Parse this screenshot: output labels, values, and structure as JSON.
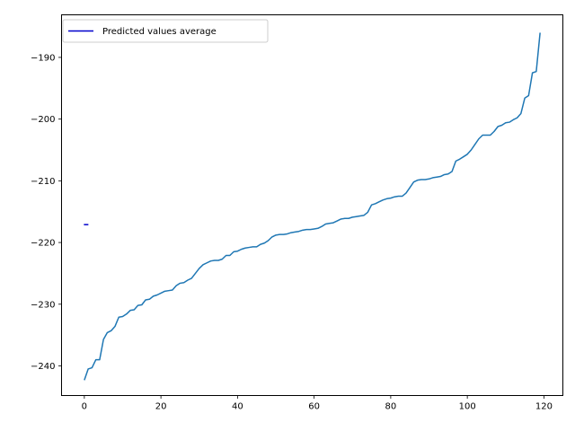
{
  "chart_data": {
    "type": "line",
    "title": "",
    "xlabel": "",
    "ylabel": "",
    "xlim": [
      -5.95,
      124.95
    ],
    "ylim": [
      -244.8,
      -183.1
    ],
    "xticks": [
      0,
      20,
      40,
      60,
      80,
      100,
      120
    ],
    "xtick_labels": [
      "0",
      "20",
      "40",
      "60",
      "80",
      "100",
      "120"
    ],
    "yticks": [
      -240,
      -230,
      -220,
      -210,
      -200,
      -190
    ],
    "ytick_labels": [
      "−240",
      "−230",
      "−220",
      "−210",
      "−200",
      "−190"
    ],
    "grid": false,
    "legend": {
      "position": "upper-left",
      "entries": [
        "Predicted values average"
      ]
    },
    "series": [
      {
        "name": "Predicted values average",
        "color": "#0000cc",
        "marker": "hline",
        "x": [
          0
        ],
        "y": [
          -217.1
        ]
      },
      {
        "color": "#1f77b4",
        "x": [
          0,
          1,
          2,
          3,
          4,
          5,
          6,
          7,
          8,
          9,
          10,
          11,
          12,
          13,
          14,
          15,
          16,
          17,
          18,
          19,
          20,
          21,
          22,
          23,
          24,
          25,
          26,
          27,
          28,
          29,
          30,
          31,
          32,
          33,
          34,
          35,
          36,
          37,
          38,
          39,
          40,
          41,
          42,
          43,
          44,
          45,
          46,
          47,
          48,
          49,
          50,
          51,
          52,
          53,
          54,
          55,
          56,
          57,
          58,
          59,
          60,
          61,
          62,
          63,
          64,
          65,
          66,
          67,
          68,
          69,
          70,
          71,
          72,
          73,
          74,
          75,
          76,
          77,
          78,
          79,
          80,
          81,
          82,
          83,
          84,
          85,
          86,
          87,
          88,
          89,
          90,
          91,
          92,
          93,
          94,
          95,
          96,
          97,
          98,
          99,
          100,
          101,
          102,
          103,
          104,
          105,
          106,
          107,
          108,
          109,
          110,
          111,
          112,
          113,
          114,
          115,
          116,
          117,
          118,
          119
        ],
        "y": [
          -242.3,
          -240.5,
          -240.3,
          -239.0,
          -239.0,
          -235.7,
          -234.6,
          -234.3,
          -233.6,
          -232.1,
          -232.0,
          -231.6,
          -231.0,
          -230.9,
          -230.2,
          -230.1,
          -229.3,
          -229.2,
          -228.7,
          -228.5,
          -228.2,
          -227.9,
          -227.8,
          -227.7,
          -227.0,
          -226.6,
          -226.5,
          -226.1,
          -225.8,
          -225.0,
          -224.2,
          -223.6,
          -223.3,
          -223.0,
          -222.9,
          -222.9,
          -222.7,
          -222.1,
          -222.1,
          -221.5,
          -221.4,
          -221.1,
          -220.9,
          -220.8,
          -220.7,
          -220.7,
          -220.3,
          -220.1,
          -219.7,
          -219.1,
          -218.8,
          -218.7,
          -218.7,
          -218.6,
          -218.4,
          -218.3,
          -218.2,
          -218.0,
          -217.9,
          -217.9,
          -217.8,
          -217.7,
          -217.4,
          -217.0,
          -216.9,
          -216.8,
          -216.5,
          -216.2,
          -216.1,
          -216.1,
          -215.9,
          -215.8,
          -215.7,
          -215.6,
          -215.1,
          -213.9,
          -213.7,
          -213.4,
          -213.1,
          -212.9,
          -212.8,
          -212.6,
          -212.5,
          -212.5,
          -212.0,
          -211.1,
          -210.2,
          -209.9,
          -209.8,
          -209.8,
          -209.7,
          -209.5,
          -209.4,
          -209.3,
          -209.0,
          -208.9,
          -208.5,
          -206.8,
          -206.5,
          -206.1,
          -205.7,
          -205.0,
          -204.1,
          -203.2,
          -202.6,
          -202.6,
          -202.6,
          -202.0,
          -201.2,
          -201.0,
          -200.6,
          -200.5,
          -200.1,
          -199.8,
          -199.1,
          -196.6,
          -196.2,
          -192.5,
          -192.3,
          -186.0
        ]
      }
    ]
  }
}
